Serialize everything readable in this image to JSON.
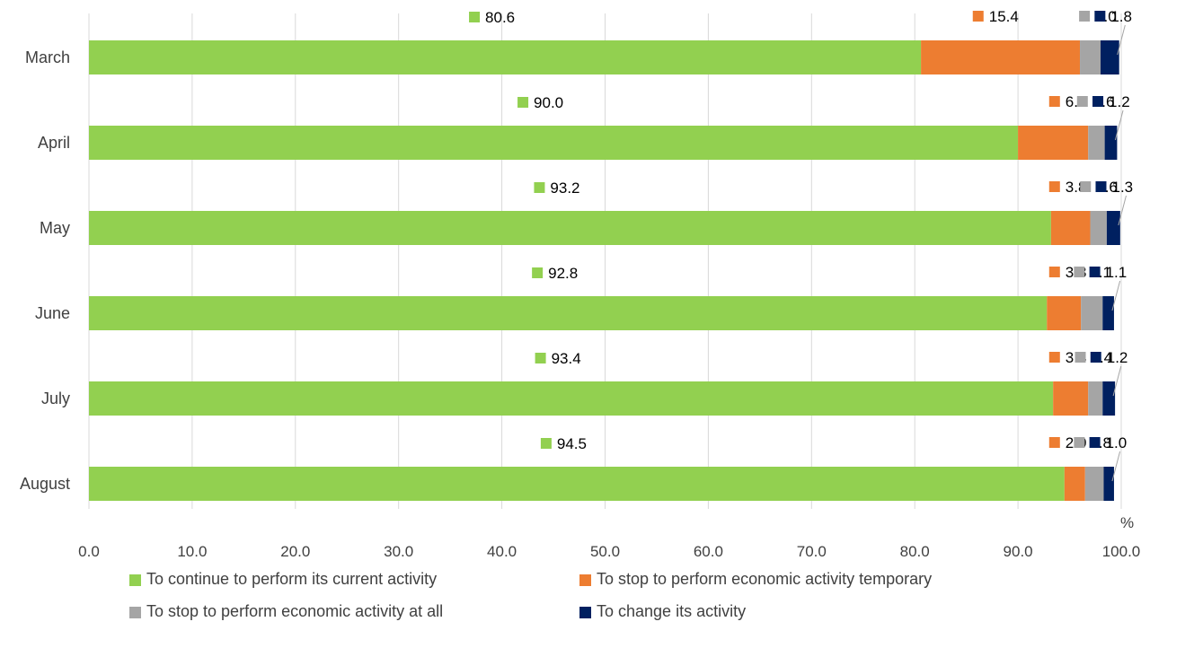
{
  "chart_data": {
    "type": "bar",
    "orientation": "horizontal",
    "stacked": true,
    "categories": [
      "March",
      "April",
      "May",
      "June",
      "July",
      "August"
    ],
    "series": [
      {
        "name": "To continue to perform its current activity",
        "color": "#92d050",
        "values": [
          80.6,
          90.0,
          93.2,
          92.8,
          93.4,
          94.5
        ]
      },
      {
        "name": "To stop to perform economic activity temporary",
        "color": "#ed7d31",
        "values": [
          15.4,
          6.8,
          3.8,
          3.3,
          3.4,
          2.0
        ]
      },
      {
        "name": "To stop to perform economic activity at all",
        "color": "#a5a5a5",
        "values": [
          2.0,
          1.6,
          1.6,
          2.1,
          1.4,
          1.8
        ]
      },
      {
        "name": "To change its activity",
        "color": "#002060",
        "values": [
          1.8,
          1.2,
          1.3,
          1.1,
          1.2,
          1.0
        ]
      }
    ],
    "data_labels": {
      "series_0": [
        "80.6",
        "90.0",
        "93.2",
        "92.8",
        "93.4",
        "94.5"
      ],
      "series_1": [
        "15.4",
        "6.8",
        "3.8",
        "3.3",
        "3.4",
        "2.0"
      ],
      "series_2": [
        "2.0",
        "1.6",
        "1.6",
        "2.1",
        "1.4",
        "1.8"
      ],
      "series_3": [
        "1.8",
        "1.2",
        "1.3",
        "1.1",
        "1.2",
        "1.0"
      ]
    },
    "x_ticks": [
      "0.0",
      "10.0",
      "20.0",
      "30.0",
      "40.0",
      "50.0",
      "60.0",
      "70.0",
      "80.0",
      "90.0",
      "100.0"
    ],
    "xlim": [
      0,
      100
    ],
    "xunit": "%",
    "grid": true,
    "legend_position": "bottom"
  }
}
